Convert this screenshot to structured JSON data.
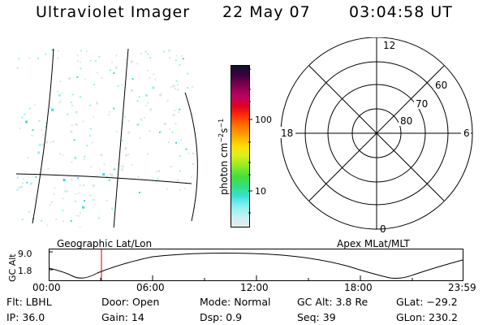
{
  "header": {
    "instrument": "Ultraviolet Imager",
    "date": "22 May 07",
    "time": "03:04:58 UT"
  },
  "colorbar": {
    "units_label": "photon cm",
    "units_exp1": "−2",
    "units_s": "s",
    "units_exp2": "−1",
    "ticks": [
      "100",
      "10"
    ],
    "colors": [
      "#e8ecec",
      "#c8f0f0",
      "#88f0f0",
      "#38e0d8",
      "#30e080",
      "#40e040",
      "#90ee20",
      "#d8f020",
      "#ffe000",
      "#ffaa00",
      "#ff7000",
      "#ff3000",
      "#e00020",
      "#c00060",
      "#800050",
      "#400040",
      "#101030"
    ]
  },
  "polar_plot": {
    "mlt_labels": {
      "top": "12",
      "bottom": "0",
      "left": "18",
      "right": "6"
    },
    "lat_labels": [
      "60",
      "70",
      "80"
    ]
  },
  "map_labels": {
    "left": "Geographic Lat/Lon",
    "right": "Apex MLat/MLT"
  },
  "altitude_plot": {
    "ylabel": "GC Alt",
    "yticks": [
      "9.0",
      "1.8"
    ],
    "xticks": [
      "00:00",
      "06:00",
      "12:00",
      "18:00",
      "23:59"
    ],
    "marker_color": "#cc0000"
  },
  "info": {
    "row1": {
      "flt": "Flt: LBHL",
      "door": "Door: Open",
      "mode": "Mode:  Normal",
      "gcalt": "GC Alt: 3.8 Re",
      "glat": "GLat: −29.2"
    },
    "row2": {
      "ip": "IP: 36.0",
      "gain": "Gain: 14",
      "dsp": "Dsp:     0.9",
      "seq": "Seq: 39",
      "glon": "GLon: 230.2"
    }
  }
}
